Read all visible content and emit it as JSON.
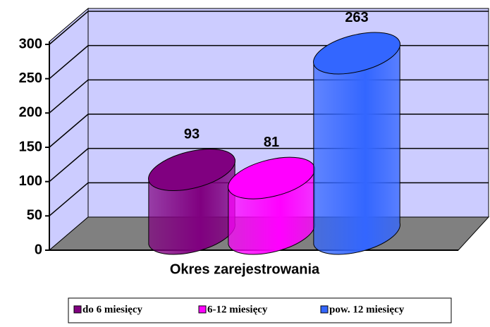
{
  "chart_data": {
    "type": "bar3d_cylinder",
    "x_label": "Okres zarejestrowania",
    "series": [
      {
        "name": "do 6 miesięcy",
        "color": "#800080",
        "values": [
          93
        ]
      },
      {
        "name": "6-12 miesięcy",
        "color": "#ff00ff",
        "values": [
          81
        ]
      },
      {
        "name": "pow. 12 miesięcy",
        "color": "#3366ff",
        "values": [
          263
        ]
      }
    ],
    "ylim": [
      0,
      300
    ],
    "yticks": [
      0,
      50,
      100,
      150,
      200,
      250,
      300
    ],
    "grid": true,
    "legend": "bottom"
  }
}
